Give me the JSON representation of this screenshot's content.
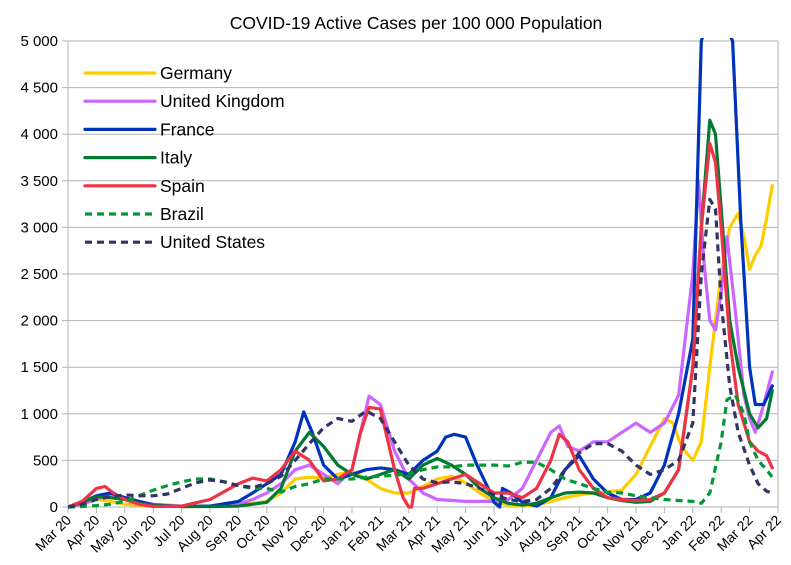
{
  "chart_data": {
    "type": "line",
    "title": "COVID-19 Active Cases per 100 000 Population",
    "xlabel": "",
    "ylabel": "",
    "ylim": [
      0,
      5000
    ],
    "yticks": [
      0,
      500,
      1000,
      1500,
      2000,
      2500,
      3000,
      3500,
      4000,
      4500,
      5000
    ],
    "ytick_labels": [
      "0",
      "500",
      "1 000",
      "1 500",
      "2 000",
      "2 500",
      "3 000",
      "3 500",
      "4 000",
      "4 500",
      "5 000"
    ],
    "xlim_months_since_mar20": [
      0,
      25
    ],
    "xtick_labels": [
      "Mar 20",
      "Apr 20",
      "May 20",
      "Jun 20",
      "Jul 20",
      "Aug 20",
      "Sep 20",
      "Oct 20",
      "Nov 20",
      "Dec 20",
      "Jan 21",
      "Feb 21",
      "Mar 21",
      "Apr 21",
      "May 21",
      "Jun 21",
      "Jul 21",
      "Aug 21",
      "Sep 21",
      "Oct 21",
      "Nov 21",
      "Dec 21",
      "Jan 22",
      "Feb 22",
      "Mar 22",
      "Apr 22"
    ],
    "grid": true,
    "legend_position": "top-left",
    "x_unit": "months since Mar 2020",
    "series": [
      {
        "name": "Germany",
        "color": "#ffcc00",
        "dashed": false,
        "x": [
          0,
          0.5,
          1,
          1.5,
          2,
          3,
          4,
          5,
          6,
          7,
          7.5,
          8,
          8.5,
          9,
          9.5,
          10,
          10.5,
          11,
          11.5,
          12,
          12.5,
          13,
          13.5,
          14,
          14.5,
          15,
          15.5,
          16,
          16.5,
          17,
          17.5,
          18,
          18.5,
          19,
          19.5,
          20,
          20.5,
          21,
          21.3,
          21.6,
          22,
          22.3,
          22.6,
          23,
          23.3,
          23.6,
          23.8,
          24,
          24.2,
          24.4,
          24.6,
          24.8
        ],
        "y": [
          0,
          30,
          80,
          60,
          30,
          10,
          5,
          10,
          20,
          60,
          150,
          300,
          320,
          310,
          350,
          380,
          300,
          200,
          150,
          150,
          220,
          300,
          330,
          260,
          150,
          60,
          20,
          10,
          20,
          60,
          100,
          130,
          150,
          160,
          180,
          350,
          650,
          950,
          900,
          650,
          500,
          700,
          1500,
          2500,
          3000,
          3150,
          2900,
          2550,
          2700,
          2800,
          3100,
          3450
        ]
      },
      {
        "name": "United Kingdom",
        "color": "#cc66ff",
        "dashed": false,
        "x": [
          0,
          0.5,
          1,
          1.5,
          2,
          2.5,
          3,
          4,
          5,
          6,
          6.5,
          7,
          7.5,
          8,
          8.5,
          9,
          9.5,
          10,
          10.3,
          10.6,
          11,
          11.5,
          12,
          12.5,
          13,
          14,
          15,
          15.5,
          16,
          16.5,
          17,
          17.3,
          17.6,
          18,
          18.5,
          19,
          19.5,
          20,
          20.5,
          21,
          21.5,
          22,
          22.2,
          22.4,
          22.6,
          22.8,
          23,
          23.2,
          23.5,
          23.8,
          24,
          24.2,
          24.5,
          24.8
        ],
        "y": [
          0,
          30,
          90,
          130,
          100,
          60,
          30,
          10,
          10,
          30,
          80,
          150,
          250,
          400,
          450,
          350,
          250,
          400,
          800,
          1190,
          1100,
          600,
          300,
          150,
          80,
          60,
          60,
          80,
          200,
          500,
          800,
          870,
          650,
          600,
          700,
          700,
          800,
          900,
          800,
          900,
          1200,
          2500,
          3500,
          2600,
          2000,
          1900,
          2300,
          2900,
          2100,
          1200,
          950,
          800,
          1100,
          1450
        ]
      },
      {
        "name": "France",
        "color": "#0033bb",
        "dashed": false,
        "x": [
          0,
          0.5,
          1,
          1.5,
          2,
          3,
          4,
          5,
          6,
          6.5,
          7,
          7.5,
          8,
          8.3,
          8.6,
          9,
          9.5,
          10,
          10.5,
          11,
          11.5,
          12,
          12.5,
          13,
          13.3,
          13.6,
          14,
          14.4,
          14.8,
          15,
          15.2,
          15.3,
          15.6,
          16,
          16.5,
          17,
          17.5,
          18,
          18.5,
          19,
          19.5,
          20,
          20.5,
          21,
          21.5,
          22,
          22.3,
          22.5,
          22.7,
          23.1,
          23.4,
          23.7,
          24,
          24.2,
          24.5,
          24.8
        ],
        "y": [
          0,
          50,
          120,
          150,
          100,
          20,
          5,
          10,
          60,
          150,
          250,
          350,
          700,
          1020,
          800,
          450,
          300,
          350,
          400,
          420,
          400,
          350,
          500,
          600,
          750,
          780,
          750,
          450,
          200,
          50,
          0,
          200,
          150,
          50,
          10,
          100,
          400,
          550,
          300,
          150,
          80,
          80,
          150,
          450,
          1000,
          1800,
          5000,
          5200,
          5200,
          5200,
          5000,
          3000,
          1500,
          1100,
          1100,
          1300
        ]
      },
      {
        "name": "Italy",
        "color": "#007a33",
        "dashed": false,
        "x": [
          0,
          0.5,
          1,
          1.5,
          2,
          2.5,
          3,
          4,
          5,
          6,
          7,
          7.5,
          8,
          8.5,
          9,
          9.5,
          10,
          10.5,
          11,
          11.5,
          12,
          12.5,
          13,
          13.5,
          14,
          14.5,
          15,
          15.5,
          16,
          16.5,
          17,
          17.5,
          18,
          18.5,
          19,
          19.5,
          20,
          20.5,
          21,
          21.5,
          22,
          22.3,
          22.6,
          22.8,
          23,
          23.3,
          23.6,
          24,
          24.3,
          24.6,
          24.8
        ],
        "y": [
          0,
          50,
          110,
          100,
          80,
          40,
          15,
          5,
          5,
          10,
          50,
          200,
          600,
          800,
          650,
          450,
          350,
          300,
          350,
          400,
          300,
          450,
          520,
          450,
          350,
          200,
          100,
          40,
          20,
          40,
          100,
          150,
          160,
          150,
          100,
          70,
          50,
          60,
          150,
          400,
          1500,
          3000,
          4150,
          4000,
          3200,
          2000,
          1500,
          1000,
          850,
          950,
          1250
        ]
      },
      {
        "name": "Spain",
        "color": "#ee3344",
        "dashed": false,
        "x": [
          0,
          0.5,
          1,
          1.3,
          1.6,
          2,
          2.5,
          3,
          4,
          5,
          6,
          6.5,
          7,
          7.5,
          8,
          8.5,
          9,
          9.5,
          10,
          10.3,
          10.6,
          11,
          11.5,
          11.8,
          12,
          12.1,
          12.2,
          12.5,
          13,
          13.5,
          14,
          14.5,
          15,
          15.5,
          16,
          16.5,
          17,
          17.3,
          17.6,
          18,
          18.5,
          19,
          19.5,
          20,
          20.5,
          21,
          21.5,
          22,
          22.3,
          22.6,
          22.8,
          23,
          23.3,
          23.6,
          24,
          24.3,
          24.6,
          24.8
        ],
        "y": [
          0,
          60,
          200,
          220,
          150,
          80,
          30,
          5,
          10,
          80,
          250,
          310,
          280,
          400,
          600,
          500,
          280,
          300,
          400,
          800,
          1070,
          1050,
          400,
          100,
          0,
          0,
          200,
          200,
          250,
          300,
          350,
          250,
          150,
          150,
          100,
          200,
          500,
          780,
          700,
          400,
          200,
          100,
          80,
          70,
          80,
          150,
          400,
          1500,
          3000,
          3900,
          3700,
          3000,
          1800,
          1100,
          700,
          600,
          550,
          420
        ]
      },
      {
        "name": "Brazil",
        "color": "#009933",
        "dashed": true,
        "x": [
          0,
          0.5,
          1,
          1.5,
          2,
          2.5,
          3,
          3.5,
          4,
          4.5,
          5,
          5.5,
          6,
          6.5,
          7,
          7.5,
          8,
          8.5,
          9,
          9.5,
          10,
          10.5,
          11,
          11.5,
          12,
          12.5,
          13,
          13.5,
          14,
          14.5,
          15,
          15.5,
          16,
          16.5,
          17,
          17.5,
          18,
          18.5,
          19,
          19.5,
          20,
          20.5,
          21,
          21.5,
          22,
          22.3,
          22.6,
          23,
          23.2,
          23.5,
          23.8,
          24,
          24.3,
          24.6,
          24.8
        ],
        "y": [
          0,
          5,
          15,
          30,
          60,
          120,
          180,
          230,
          270,
          300,
          300,
          270,
          230,
          200,
          200,
          160,
          220,
          250,
          300,
          300,
          300,
          320,
          330,
          340,
          360,
          400,
          430,
          430,
          450,
          450,
          450,
          440,
          480,
          480,
          400,
          300,
          250,
          200,
          160,
          150,
          120,
          100,
          80,
          70,
          60,
          40,
          150,
          700,
          1150,
          1200,
          1000,
          700,
          500,
          400,
          320
        ]
      },
      {
        "name": "United States",
        "color": "#333366",
        "dashed": true,
        "x": [
          0,
          0.5,
          1,
          1.5,
          2,
          2.5,
          3,
          3.5,
          4,
          4.5,
          5,
          5.5,
          6,
          6.5,
          7,
          7.5,
          8,
          8.5,
          9,
          9.5,
          10,
          10.5,
          11,
          11.5,
          12,
          12.5,
          13,
          13.5,
          14,
          14.5,
          15,
          15.5,
          16,
          16.5,
          17,
          17.5,
          18,
          18.5,
          19,
          19.5,
          20,
          20.5,
          21,
          21.5,
          22,
          22.3,
          22.6,
          22.8,
          23,
          23.3,
          23.6,
          24,
          24.3,
          24.6,
          24.8
        ],
        "y": [
          0,
          30,
          80,
          110,
          130,
          120,
          120,
          140,
          200,
          260,
          290,
          270,
          230,
          210,
          250,
          330,
          500,
          680,
          850,
          950,
          920,
          1030,
          950,
          700,
          450,
          300,
          260,
          270,
          250,
          200,
          130,
          80,
          60,
          80,
          200,
          400,
          580,
          680,
          680,
          600,
          450,
          350,
          400,
          500,
          900,
          2500,
          3300,
          3200,
          2200,
          1300,
          800,
          450,
          250,
          170,
          150
        ]
      }
    ]
  }
}
